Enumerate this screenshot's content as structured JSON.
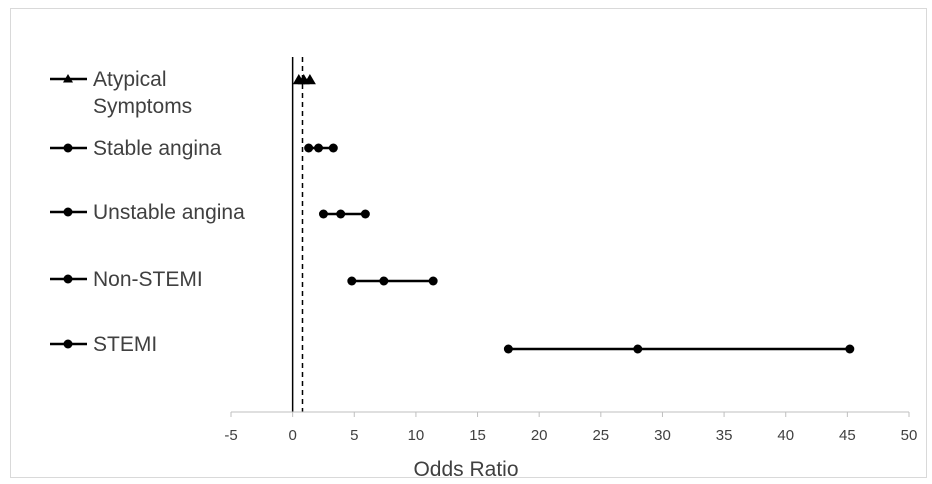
{
  "chart_data": {
    "type": "scatter",
    "title": "",
    "xlabel": "Odds Ratio",
    "ylabel": "",
    "xlim": [
      -5,
      50
    ],
    "xticks": [
      -5,
      0,
      5,
      10,
      15,
      20,
      25,
      30,
      35,
      40,
      45,
      50
    ],
    "grid": false,
    "legend_position": "left",
    "reference_lines": [
      {
        "x": 0,
        "style": "solid"
      },
      {
        "x": 0.8,
        "style": "dashed"
      }
    ],
    "series": [
      {
        "name": "Atypical Symptoms",
        "marker": "triangle",
        "low": 0.5,
        "estimate": 0.9,
        "high": 1.4
      },
      {
        "name": "Stable angina",
        "marker": "circle",
        "low": 1.3,
        "estimate": 2.1,
        "high": 3.3
      },
      {
        "name": "Unstable angina",
        "marker": "circle",
        "low": 2.5,
        "estimate": 3.9,
        "high": 5.9
      },
      {
        "name": "Non-STEMI",
        "marker": "circle",
        "low": 4.8,
        "estimate": 7.4,
        "high": 11.4
      },
      {
        "name": "STEMI",
        "marker": "circle",
        "low": 17.5,
        "estimate": 28.0,
        "high": 45.2
      }
    ],
    "color": "#000000"
  }
}
